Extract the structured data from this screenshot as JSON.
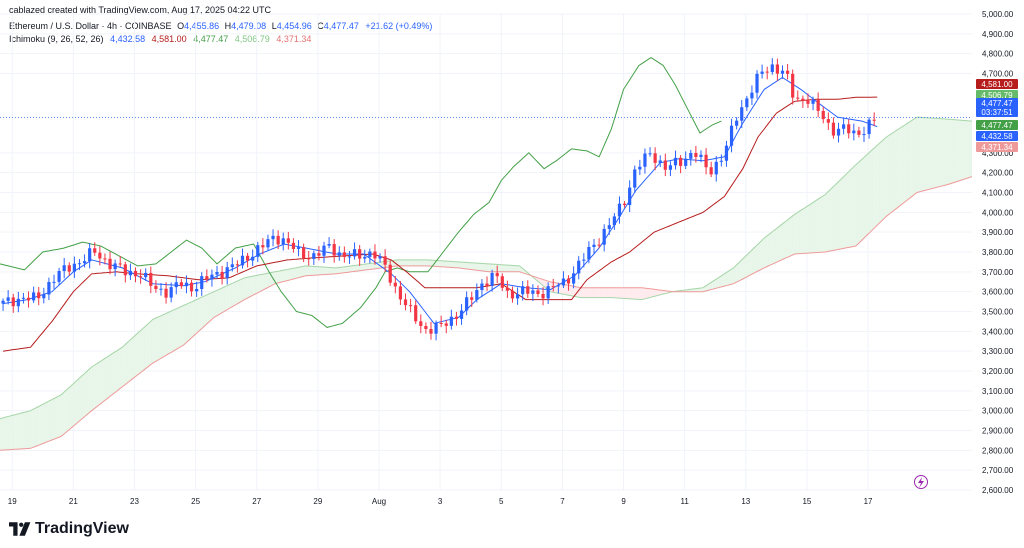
{
  "credit": "cablazed created with TradingView.com, Aug 17, 2025 04:22 UTC",
  "legend": {
    "symbol": "Ethereum / U.S. Dollar · 4h · COINBASE",
    "o_key": "O",
    "o_val": "4,455.86",
    "h_key": "H",
    "h_val": "4,479.08",
    "l_key": "L",
    "l_val": "4,454.96",
    "c_key": "C",
    "c_val": "4,477.47",
    "change": "+21.62 (+0.49%)",
    "ind_name": "Ichimoku (9, 26, 52, 26)",
    "ind_v1": "4,432.58",
    "ind_v2": "4,581.00",
    "ind_v3": "4,477.47",
    "ind_v4": "4,506.79",
    "ind_v5": "4,371.34"
  },
  "brand": "TradingView",
  "colors": {
    "up": "#2962ff",
    "down": "#f23645",
    "conversion_line": "#2962ff",
    "base_line": "#b71c1c",
    "lagging_span": "#43a047",
    "leading_a": "#a5d6a7",
    "leading_b": "#ef9a9a",
    "cloud_bull": "#e8f5e9",
    "cloud_bear": "#ffebee"
  },
  "chart_data": {
    "type": "candlestick",
    "ylim": [
      2600,
      5000
    ],
    "ticks_y": [
      {
        "v": 5000,
        "label": "5,000.00"
      },
      {
        "v": 4900,
        "label": "4,900.00"
      },
      {
        "v": 4800,
        "label": "4,800.00"
      },
      {
        "v": 4700,
        "label": "4,700.00"
      },
      {
        "v": 4300,
        "label": "4,300.00"
      },
      {
        "v": 4200,
        "label": "4,200.00"
      },
      {
        "v": 4100,
        "label": "4,100.00"
      },
      {
        "v": 4000,
        "label": "4,000.00"
      },
      {
        "v": 3900,
        "label": "3,900.00"
      },
      {
        "v": 3800,
        "label": "3,800.00"
      },
      {
        "v": 3700,
        "label": "3,700.00"
      },
      {
        "v": 3600,
        "label": "3,600.00"
      },
      {
        "v": 3500,
        "label": "3,500.00"
      },
      {
        "v": 3400,
        "label": "3,400.00"
      },
      {
        "v": 3300,
        "label": "3,300.00"
      },
      {
        "v": 3200,
        "label": "3,200.00"
      },
      {
        "v": 3100,
        "label": "3,100.00"
      },
      {
        "v": 3000,
        "label": "3,000.00"
      },
      {
        "v": 2900,
        "label": "2,900.00"
      },
      {
        "v": 2800,
        "label": "2,800.00"
      },
      {
        "v": 2700,
        "label": "2,700.00"
      },
      {
        "v": 2600,
        "label": "2,600.00"
      }
    ],
    "x_labels": [
      {
        "d": 19,
        "label": "19"
      },
      {
        "d": 21,
        "label": "21"
      },
      {
        "d": 23,
        "label": "23"
      },
      {
        "d": 25,
        "label": "25"
      },
      {
        "d": 27,
        "label": "27"
      },
      {
        "d": 29,
        "label": "29"
      },
      {
        "d": 31,
        "label": "Aug"
      },
      {
        "d": 33,
        "label": "3"
      },
      {
        "d": 35,
        "label": "5"
      },
      {
        "d": 37,
        "label": "7"
      },
      {
        "d": 39,
        "label": "9"
      },
      {
        "d": 41,
        "label": "11"
      },
      {
        "d": 43,
        "label": "13"
      },
      {
        "d": 45,
        "label": "15"
      },
      {
        "d": 47,
        "label": "17"
      }
    ],
    "x_range_days": [
      18.6,
      50.4
    ],
    "price_tags": [
      {
        "v": 4581.0,
        "label": "4,581.00",
        "color": "#b71c1c"
      },
      {
        "v": 4506.79,
        "label": "4,506.79",
        "color": "#66bb6a"
      },
      {
        "v": 4477.47,
        "label": "4,477.47",
        "sub": "03:37:51",
        "color": "#2962ff"
      },
      {
        "v": 4477.47,
        "label": "4,477.47",
        "color": "#43a047"
      },
      {
        "v": 4432.58,
        "label": "4,432.58",
        "color": "#2962ff"
      },
      {
        "v": 4371.34,
        "label": "4,371.34",
        "color": "#ef9a9a"
      }
    ],
    "last_price": 4477.47,
    "anchors_close": [
      [
        18.7,
        3540
      ],
      [
        19.3,
        3570
      ],
      [
        19.8,
        3560
      ],
      [
        20.3,
        3660
      ],
      [
        20.8,
        3720
      ],
      [
        21.3,
        3760
      ],
      [
        21.7,
        3800
      ],
      [
        22.2,
        3740
      ],
      [
        22.7,
        3700
      ],
      [
        23.2,
        3690
      ],
      [
        23.6,
        3620
      ],
      [
        24.1,
        3600
      ],
      [
        24.5,
        3640
      ],
      [
        24.9,
        3620
      ],
      [
        25.3,
        3660
      ],
      [
        25.8,
        3700
      ],
      [
        26.3,
        3730
      ],
      [
        26.8,
        3790
      ],
      [
        27.3,
        3840
      ],
      [
        27.6,
        3880
      ],
      [
        27.9,
        3860
      ],
      [
        28.4,
        3790
      ],
      [
        28.9,
        3780
      ],
      [
        29.4,
        3830
      ],
      [
        29.8,
        3780
      ],
      [
        30.3,
        3780
      ],
      [
        30.8,
        3800
      ],
      [
        31.2,
        3720
      ],
      [
        31.6,
        3600
      ],
      [
        32.1,
        3480
      ],
      [
        32.5,
        3410
      ],
      [
        33.0,
        3420
      ],
      [
        33.5,
        3480
      ],
      [
        34.0,
        3560
      ],
      [
        34.4,
        3650
      ],
      [
        34.8,
        3680
      ],
      [
        35.2,
        3590
      ],
      [
        35.7,
        3600
      ],
      [
        36.2,
        3590
      ],
      [
        36.7,
        3620
      ],
      [
        37.1,
        3650
      ],
      [
        37.6,
        3750
      ],
      [
        38.1,
        3850
      ],
      [
        38.6,
        3950
      ],
      [
        39.0,
        4050
      ],
      [
        39.4,
        4220
      ],
      [
        39.9,
        4300
      ],
      [
        40.4,
        4220
      ],
      [
        40.9,
        4260
      ],
      [
        41.3,
        4310
      ],
      [
        41.8,
        4200
      ],
      [
        42.3,
        4300
      ],
      [
        42.7,
        4480
      ],
      [
        43.1,
        4600
      ],
      [
        43.5,
        4700
      ],
      [
        43.9,
        4740
      ],
      [
        44.3,
        4700
      ],
      [
        44.6,
        4560
      ],
      [
        45.0,
        4580
      ],
      [
        45.4,
        4500
      ],
      [
        45.8,
        4420
      ],
      [
        46.2,
        4420
      ],
      [
        46.6,
        4390
      ],
      [
        47.0,
        4440
      ],
      [
        47.3,
        4477
      ]
    ],
    "conversion_anchors": [
      [
        18.7,
        3540
      ],
      [
        19.5,
        3560
      ],
      [
        20.3,
        3600
      ],
      [
        21.0,
        3700
      ],
      [
        21.6,
        3760
      ],
      [
        22.6,
        3720
      ],
      [
        23.6,
        3640
      ],
      [
        24.6,
        3630
      ],
      [
        25.3,
        3650
      ],
      [
        26.3,
        3720
      ],
      [
        27.1,
        3790
      ],
      [
        27.9,
        3840
      ],
      [
        28.6,
        3820
      ],
      [
        29.6,
        3790
      ],
      [
        30.5,
        3790
      ],
      [
        31.4,
        3690
      ],
      [
        32.0,
        3600
      ],
      [
        32.8,
        3440
      ],
      [
        33.6,
        3470
      ],
      [
        34.2,
        3560
      ],
      [
        35.0,
        3640
      ],
      [
        35.8,
        3620
      ],
      [
        36.6,
        3610
      ],
      [
        37.4,
        3680
      ],
      [
        38.2,
        3820
      ],
      [
        38.8,
        3960
      ],
      [
        39.4,
        4110
      ],
      [
        40.2,
        4250
      ],
      [
        40.8,
        4270
      ],
      [
        41.6,
        4260
      ],
      [
        42.3,
        4280
      ],
      [
        42.9,
        4450
      ],
      [
        43.6,
        4620
      ],
      [
        44.2,
        4680
      ],
      [
        44.8,
        4620
      ],
      [
        45.3,
        4560
      ],
      [
        46.0,
        4480
      ],
      [
        46.8,
        4460
      ],
      [
        47.3,
        4432
      ]
    ],
    "base_anchors": [
      [
        18.7,
        3300
      ],
      [
        19.6,
        3320
      ],
      [
        20.3,
        3450
      ],
      [
        21.0,
        3600
      ],
      [
        21.6,
        3690
      ],
      [
        22.4,
        3700
      ],
      [
        23.1,
        3690
      ],
      [
        24.1,
        3680
      ],
      [
        25.1,
        3660
      ],
      [
        26.1,
        3670
      ],
      [
        27.0,
        3730
      ],
      [
        28.0,
        3760
      ],
      [
        28.8,
        3770
      ],
      [
        29.8,
        3780
      ],
      [
        30.8,
        3790
      ],
      [
        31.4,
        3760
      ],
      [
        31.9,
        3700
      ],
      [
        32.5,
        3620
      ],
      [
        33.3,
        3620
      ],
      [
        34.2,
        3620
      ],
      [
        35.0,
        3640
      ],
      [
        35.8,
        3560
      ],
      [
        36.6,
        3560
      ],
      [
        37.3,
        3560
      ],
      [
        37.8,
        3660
      ],
      [
        38.6,
        3750
      ],
      [
        39.2,
        3800
      ],
      [
        40.0,
        3900
      ],
      [
        40.8,
        3950
      ],
      [
        41.6,
        4000
      ],
      [
        42.3,
        4080
      ],
      [
        42.9,
        4220
      ],
      [
        43.4,
        4380
      ],
      [
        44.0,
        4500
      ],
      [
        44.6,
        4560
      ],
      [
        45.3,
        4570
      ],
      [
        46.0,
        4570
      ],
      [
        46.6,
        4580
      ],
      [
        47.3,
        4581
      ]
    ],
    "lagging_anchors": [
      [
        18.6,
        3740
      ],
      [
        19.4,
        3710
      ],
      [
        20.0,
        3800
      ],
      [
        20.7,
        3820
      ],
      [
        21.3,
        3850
      ],
      [
        21.9,
        3830
      ],
      [
        22.5,
        3780
      ],
      [
        23.1,
        3730
      ],
      [
        23.7,
        3740
      ],
      [
        24.2,
        3800
      ],
      [
        24.7,
        3860
      ],
      [
        25.2,
        3820
      ],
      [
        25.7,
        3740
      ],
      [
        26.3,
        3820
      ],
      [
        26.9,
        3840
      ],
      [
        27.4,
        3700
      ],
      [
        27.8,
        3600
      ],
      [
        28.3,
        3500
      ],
      [
        28.8,
        3480
      ],
      [
        29.3,
        3420
      ],
      [
        29.8,
        3440
      ],
      [
        30.4,
        3520
      ],
      [
        30.9,
        3620
      ],
      [
        31.2,
        3700
      ],
      [
        31.6,
        3720
      ],
      [
        32.0,
        3700
      ],
      [
        32.6,
        3700
      ],
      [
        33.1,
        3800
      ],
      [
        33.6,
        3900
      ],
      [
        34.1,
        3990
      ],
      [
        34.6,
        4050
      ],
      [
        35.0,
        4160
      ],
      [
        35.4,
        4230
      ],
      [
        35.9,
        4300
      ],
      [
        36.4,
        4220
      ],
      [
        36.8,
        4260
      ],
      [
        37.3,
        4320
      ],
      [
        37.8,
        4310
      ],
      [
        38.2,
        4280
      ],
      [
        38.6,
        4420
      ],
      [
        39.0,
        4620
      ],
      [
        39.5,
        4740
      ],
      [
        39.9,
        4780
      ],
      [
        40.3,
        4740
      ],
      [
        40.7,
        4640
      ],
      [
        41.1,
        4520
      ],
      [
        41.5,
        4400
      ],
      [
        41.9,
        4440
      ],
      [
        42.2,
        4460
      ]
    ],
    "span_a_anchors": [
      [
        18.6,
        2960
      ],
      [
        19.6,
        3000
      ],
      [
        20.6,
        3080
      ],
      [
        21.6,
        3220
      ],
      [
        22.6,
        3320
      ],
      [
        23.6,
        3460
      ],
      [
        24.6,
        3530
      ],
      [
        25.6,
        3600
      ],
      [
        26.6,
        3670
      ],
      [
        27.6,
        3700
      ],
      [
        28.6,
        3730
      ],
      [
        29.6,
        3720
      ],
      [
        30.6,
        3740
      ],
      [
        31.6,
        3760
      ],
      [
        32.6,
        3760
      ],
      [
        33.6,
        3750
      ],
      [
        34.6,
        3740
      ],
      [
        35.6,
        3730
      ],
      [
        36.6,
        3600
      ],
      [
        37.6,
        3570
      ],
      [
        38.6,
        3570
      ],
      [
        39.6,
        3560
      ],
      [
        40.6,
        3600
      ],
      [
        41.6,
        3620
      ],
      [
        42.6,
        3720
      ],
      [
        43.6,
        3870
      ],
      [
        44.6,
        3990
      ],
      [
        45.6,
        4090
      ],
      [
        46.6,
        4240
      ],
      [
        47.6,
        4380
      ],
      [
        48.6,
        4480
      ],
      [
        49.6,
        4470
      ],
      [
        50.4,
        4460
      ]
    ],
    "span_b_anchors": [
      [
        18.6,
        2800
      ],
      [
        19.6,
        2810
      ],
      [
        20.6,
        2870
      ],
      [
        21.6,
        3000
      ],
      [
        22.6,
        3120
      ],
      [
        23.6,
        3240
      ],
      [
        24.6,
        3330
      ],
      [
        25.6,
        3470
      ],
      [
        26.6,
        3560
      ],
      [
        27.6,
        3640
      ],
      [
        28.6,
        3680
      ],
      [
        29.6,
        3690
      ],
      [
        30.6,
        3710
      ],
      [
        31.6,
        3730
      ],
      [
        32.6,
        3730
      ],
      [
        33.6,
        3720
      ],
      [
        34.6,
        3700
      ],
      [
        35.6,
        3700
      ],
      [
        36.6,
        3650
      ],
      [
        37.6,
        3620
      ],
      [
        38.6,
        3620
      ],
      [
        39.6,
        3620
      ],
      [
        40.6,
        3600
      ],
      [
        41.6,
        3600
      ],
      [
        42.6,
        3640
      ],
      [
        43.6,
        3720
      ],
      [
        44.6,
        3790
      ],
      [
        45.6,
        3800
      ],
      [
        46.6,
        3830
      ],
      [
        47.6,
        3980
      ],
      [
        48.6,
        4100
      ],
      [
        49.6,
        4140
      ],
      [
        50.4,
        4180
      ]
    ]
  }
}
